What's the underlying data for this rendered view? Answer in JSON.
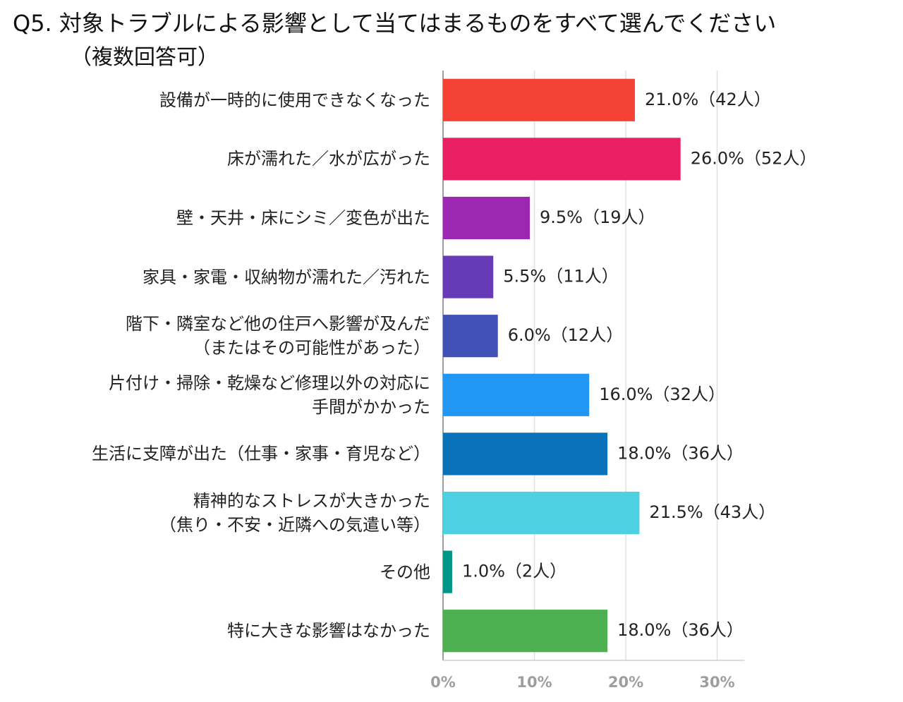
{
  "chart_data": {
    "type": "bar",
    "orientation": "horizontal",
    "title": "Q5. 対象トラブルによる影響として当てはまるものをすべて選んでください",
    "subtitle": "（複数回答可）",
    "categories": [
      "設備が一時的に使用できなくなった",
      "床が濡れた／水が広がった",
      "壁・天井・床にシミ／変色が出た",
      "家具・家電・収納物が濡れた／汚れた",
      "階下・隣室など他の住戸へ影響が及んだ\n（またはその可能性があった）",
      "片付け・掃除・乾燥など修理以外の対応に\n手間がかかった",
      "生活に支障が出た（仕事・家事・育児など）",
      "精神的なストレスが大きかった\n（焦り・不安・近隣への気遣い等）",
      "その他",
      "特に大きな影響はなかった"
    ],
    "values": [
      21.0,
      26.0,
      9.5,
      5.5,
      6.0,
      16.0,
      18.0,
      21.5,
      1.0,
      18.0
    ],
    "value_labels": [
      "21.0%（42人）",
      "26.0%（52人）",
      "9.5%（19人）",
      "5.5%（11人）",
      "6.0%（12人）",
      "16.0%（32人）",
      "18.0%（36人）",
      "21.5%（43人）",
      "1.0%（2人）",
      "18.0%（36人）"
    ],
    "colors": [
      "#f44336",
      "#e91e63",
      "#9c27b0",
      "#673ab7",
      "#3f51b5",
      "#2196f3",
      "#0a72b8",
      "#4dd0e1",
      "#009688",
      "#4caf50"
    ],
    "xlim": [
      0,
      33
    ],
    "xticks": [
      {
        "value": 0,
        "label": "0%"
      },
      {
        "value": 10,
        "label": "10%"
      },
      {
        "value": 20,
        "label": "20%"
      },
      {
        "value": 30,
        "label": "30%"
      }
    ],
    "grid": true
  }
}
